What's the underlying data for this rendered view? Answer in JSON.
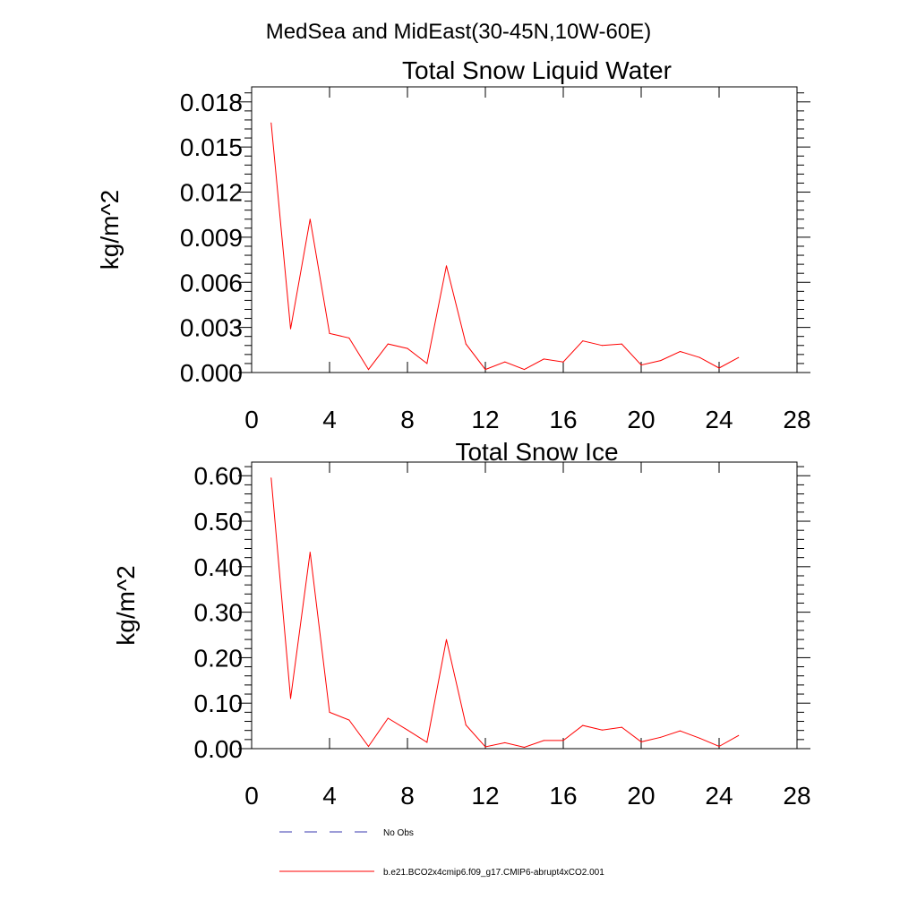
{
  "figure": {
    "title": "MedSea and MidEast(30-45N,10W-60E)"
  },
  "legend": {
    "entries": [
      {
        "label": "No Obs",
        "color": "#3b3bb0",
        "style": "dashed"
      },
      {
        "label": "b.e21.BCO2x4cmip6.f09_g17.CMIP6-abrupt4xCO2.001",
        "color": "#ff0000",
        "style": "solid"
      }
    ]
  },
  "chart_data": [
    {
      "type": "line",
      "title": "Total Snow Liquid Water",
      "xlabel": "",
      "ylabel": "kg/m^2",
      "xlim": [
        0,
        28
      ],
      "ylim": [
        0,
        0.019
      ],
      "xticks": [
        0,
        4,
        8,
        12,
        16,
        20,
        24,
        28
      ],
      "xtick_labels": [
        "0",
        "4",
        "8",
        "12",
        "16",
        "20",
        "24",
        "28"
      ],
      "yticks": [
        0,
        0.003,
        0.006,
        0.009,
        0.012,
        0.015,
        0.018
      ],
      "ytick_labels": [
        "0.000",
        "0.003",
        "0.006",
        "0.009",
        "0.012",
        "0.015",
        "0.018"
      ],
      "series": [
        {
          "name": "b.e21.BCO2x4cmip6.f09_g17.CMIP6-abrupt4xCO2.001",
          "color": "#ff0000",
          "x": [
            1,
            2,
            3,
            4,
            5,
            6,
            7,
            8,
            9,
            10,
            11,
            12,
            13,
            14,
            15,
            16,
            17,
            18,
            19,
            20,
            21,
            22,
            23,
            24,
            25
          ],
          "values": [
            0.0166,
            0.0029,
            0.0102,
            0.0026,
            0.0023,
            0.0002,
            0.0019,
            0.0016,
            0.0006,
            0.0071,
            0.0019,
            0.0002,
            0.0007,
            0.0002,
            0.0009,
            0.0007,
            0.0021,
            0.0018,
            0.0019,
            0.0005,
            0.0008,
            0.0014,
            0.001,
            0.0003,
            0.001
          ]
        }
      ]
    },
    {
      "type": "line",
      "title": "Total Snow Ice",
      "xlabel": "",
      "ylabel": "kg/m^2",
      "xlim": [
        0,
        28
      ],
      "ylim": [
        0,
        0.63
      ],
      "xticks": [
        0,
        4,
        8,
        12,
        16,
        20,
        24,
        28
      ],
      "xtick_labels": [
        "0",
        "4",
        "8",
        "12",
        "16",
        "20",
        "24",
        "28"
      ],
      "yticks": [
        0,
        0.1,
        0.2,
        0.3,
        0.4,
        0.5,
        0.6
      ],
      "ytick_labels": [
        "0.00",
        "0.10",
        "0.20",
        "0.30",
        "0.40",
        "0.50",
        "0.60"
      ],
      "series": [
        {
          "name": "b.e21.BCO2x4cmip6.f09_g17.CMIP6-abrupt4xCO2.001",
          "color": "#ff0000",
          "x": [
            1,
            2,
            3,
            4,
            5,
            6,
            7,
            8,
            9,
            10,
            11,
            12,
            13,
            14,
            15,
            16,
            17,
            18,
            19,
            20,
            21,
            22,
            23,
            24,
            25
          ],
          "values": [
            0.595,
            0.11,
            0.432,
            0.08,
            0.063,
            0.005,
            0.067,
            0.041,
            0.014,
            0.24,
            0.052,
            0.004,
            0.013,
            0.003,
            0.018,
            0.018,
            0.051,
            0.041,
            0.047,
            0.015,
            0.025,
            0.039,
            0.023,
            0.005,
            0.029
          ]
        }
      ]
    }
  ]
}
